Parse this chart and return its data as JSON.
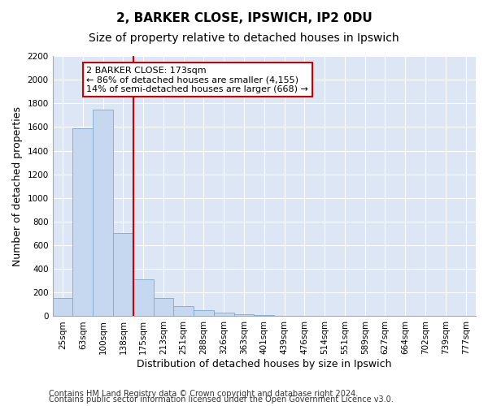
{
  "title1": "2, BARKER CLOSE, IPSWICH, IP2 0DU",
  "title2": "Size of property relative to detached houses in Ipswich",
  "xlabel": "Distribution of detached houses by size in Ipswich",
  "ylabel": "Number of detached properties",
  "categories": [
    "25sqm",
    "63sqm",
    "100sqm",
    "138sqm",
    "175sqm",
    "213sqm",
    "251sqm",
    "288sqm",
    "326sqm",
    "363sqm",
    "401sqm",
    "439sqm",
    "476sqm",
    "514sqm",
    "551sqm",
    "589sqm",
    "627sqm",
    "664sqm",
    "702sqm",
    "739sqm",
    "777sqm"
  ],
  "values": [
    155,
    1590,
    1750,
    700,
    315,
    155,
    85,
    50,
    30,
    18,
    10,
    0,
    0,
    0,
    0,
    0,
    0,
    0,
    0,
    0,
    0
  ],
  "bar_color": "#c5d8f0",
  "bar_edge_color": "#7aaad0",
  "vline_x_index": 4,
  "vline_color": "#cc0000",
  "annotation_text": "2 BARKER CLOSE: 173sqm\n← 86% of detached houses are smaller (4,155)\n14% of semi-detached houses are larger (668) →",
  "annotation_box_facecolor": "#ffffff",
  "annotation_box_edgecolor": "#cc0000",
  "ylim": [
    0,
    2200
  ],
  "yticks": [
    0,
    200,
    400,
    600,
    800,
    1000,
    1200,
    1400,
    1600,
    1800,
    2000,
    2200
  ],
  "footer1": "Contains HM Land Registry data © Crown copyright and database right 2024.",
  "footer2": "Contains public sector information licensed under the Open Government Licence v3.0.",
  "plot_bg_color": "#dce6f5",
  "title1_fontsize": 11,
  "title2_fontsize": 10,
  "tick_fontsize": 7.5,
  "axis_label_fontsize": 9,
  "footer_fontsize": 7,
  "annotation_fontsize": 8
}
